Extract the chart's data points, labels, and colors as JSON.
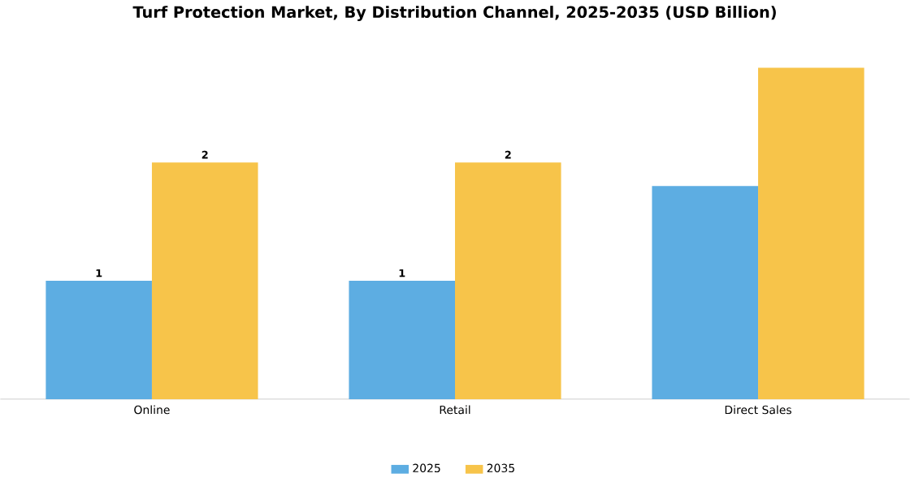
{
  "chart_data": {
    "type": "bar",
    "title": "Turf Protection Market, By Distribution Channel, 2025-2035 (USD Billion)",
    "categories": [
      "Online",
      "Retail",
      "Direct Sales"
    ],
    "legend": "bottom",
    "series": [
      {
        "name": "2025",
        "color": "#5dade2",
        "values": [
          1,
          1,
          1.8
        ],
        "value_labels": [
          "1",
          "1",
          null
        ]
      },
      {
        "name": "2035",
        "color": "#f7c44a",
        "values": [
          2,
          2,
          2.8
        ],
        "value_labels": [
          "2",
          "2",
          null
        ]
      }
    ]
  }
}
